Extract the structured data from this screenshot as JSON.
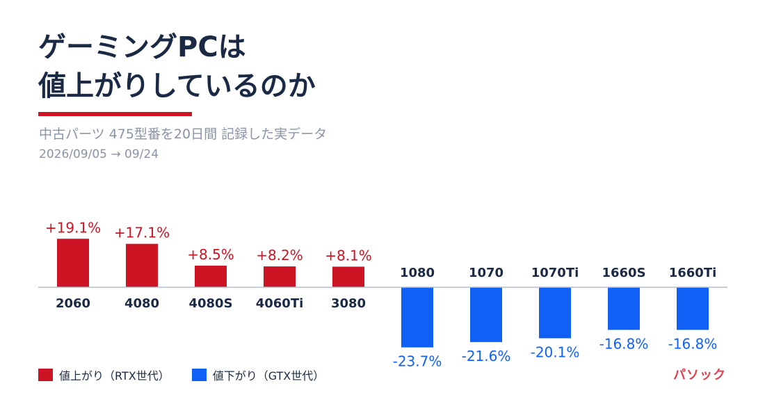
{
  "header": {
    "title_line1": "ゲーミングPCは",
    "title_line2": "値上がりしているのか",
    "subtitle": "中古パーツ 475型番を20日間 記録した実データ",
    "date_range": "2026/09/05 → 09/24"
  },
  "legend": {
    "up_label": "値上がり（RTX世代）",
    "down_label": "値下がり（GTX世代）"
  },
  "brand": "パソック",
  "colors": {
    "up": "#cc1424",
    "down": "#1160f5",
    "axis": "#b4bccb",
    "category_text": "#1b2a44",
    "title": "#1b2a44",
    "muted": "#8a93a6"
  },
  "chart_data": {
    "type": "bar",
    "title": "",
    "xlabel": "",
    "ylabel": "",
    "ylim": [
      -25,
      20
    ],
    "grid": false,
    "categories": [
      "2060",
      "4080",
      "4080S",
      "4060Ti",
      "3080",
      "1080",
      "1070",
      "1070Ti",
      "1660S",
      "1660Ti"
    ],
    "values": [
      19.1,
      17.1,
      8.5,
      8.2,
      8.1,
      -23.7,
      -21.6,
      -20.1,
      -16.8,
      -16.8
    ],
    "value_labels": [
      "+19.1%",
      "+17.1%",
      "+8.5%",
      "+8.2%",
      "+8.1%",
      "-23.7%",
      "-21.6%",
      "-20.1%",
      "-16.8%",
      "-16.8%"
    ]
  }
}
